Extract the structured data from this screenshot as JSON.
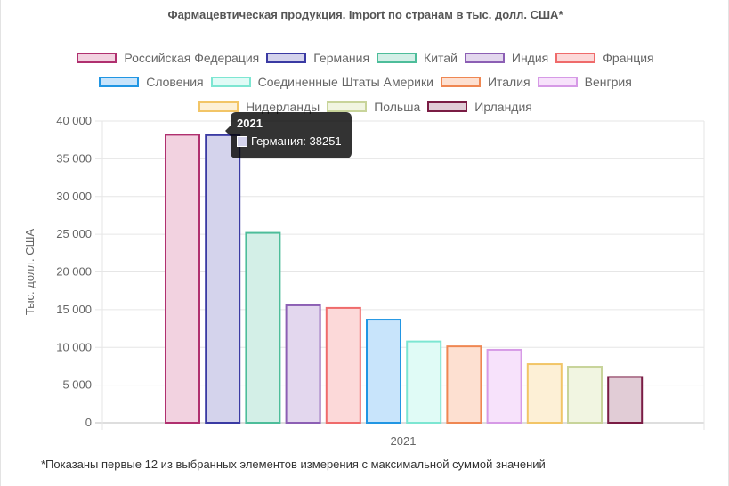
{
  "chart_data": {
    "type": "bar",
    "title": "Фармацевтическая продукция. Import по странам в тыс. долл. США*",
    "ylabel": "Тыс. долл. США",
    "xlabel": "",
    "categories": [
      "2021"
    ],
    "ylim": [
      0,
      40000
    ],
    "yticks": [
      0,
      5000,
      10000,
      15000,
      20000,
      25000,
      30000,
      35000,
      40000
    ],
    "ytick_labels": [
      "0",
      "5 000",
      "10 000",
      "15 000",
      "20 000",
      "25 000",
      "30 000",
      "35 000",
      "40 000"
    ],
    "grid": true,
    "legend_position": "top",
    "series": [
      {
        "name": "Российская Федерация",
        "values": [
          38300
        ],
        "border": "#b0306f",
        "fill": "#f2d2e0"
      },
      {
        "name": "Германия",
        "values": [
          38251
        ],
        "border": "#3a3aa3",
        "fill": "#d4d3ec"
      },
      {
        "name": "Китай",
        "values": [
          25300
        ],
        "border": "#4dbd9a",
        "fill": "#d3efe7"
      },
      {
        "name": "Индия",
        "values": [
          15700
        ],
        "border": "#8c5fb4",
        "fill": "#e3d7ee"
      },
      {
        "name": "Франция",
        "values": [
          15350
        ],
        "border": "#ef6b6b",
        "fill": "#fcd9d9"
      },
      {
        "name": "Словения",
        "values": [
          13800
        ],
        "border": "#2196e3",
        "fill": "#c8e4fb"
      },
      {
        "name": "Соединенные Штаты Америки",
        "values": [
          10900
        ],
        "border": "#7de6d2",
        "fill": "#e0fbf6"
      },
      {
        "name": "Италия",
        "values": [
          10250
        ],
        "border": "#ef8752",
        "fill": "#fde0d1"
      },
      {
        "name": "Венгрия",
        "values": [
          9800
        ],
        "border": "#d69ae6",
        "fill": "#f7e2fb"
      },
      {
        "name": "Нидерланды",
        "values": [
          7900
        ],
        "border": "#f2c567",
        "fill": "#fdf0d6"
      },
      {
        "name": "Польша",
        "values": [
          7550
        ],
        "border": "#c8d49a",
        "fill": "#f1f5e1"
      },
      {
        "name": "Ирландия",
        "values": [
          6200
        ],
        "border": "#7a1c44",
        "fill": "#e1ccd6"
      }
    ]
  },
  "legend_rows": [
    [
      0,
      1,
      2,
      3,
      4
    ],
    [
      5,
      6,
      7,
      8
    ],
    [
      9,
      10,
      11
    ]
  ],
  "tooltip": {
    "title": "2021",
    "label": "Германия: 38251",
    "swatch_color": "#d4d3ec"
  },
  "footnote": "*Показаны первые 12 из выбранных элементов измерения с максимальной суммой значений"
}
